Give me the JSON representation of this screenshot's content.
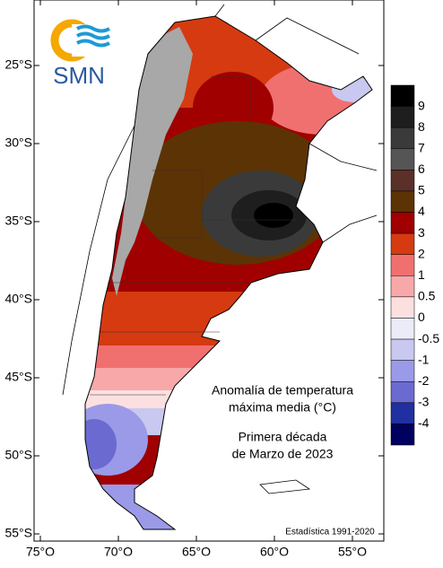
{
  "logo": {
    "text": "SMN"
  },
  "map": {
    "lat_labels": [
      "25°S",
      "30°S",
      "35°S",
      "40°S",
      "45°S",
      "50°S",
      "55°S"
    ],
    "lon_labels": [
      "75°O",
      "70°O",
      "65°O",
      "60°O",
      "55°O"
    ],
    "annotation": {
      "title_lines": [
        "Anomalía de temperatura",
        "máxima media (°C)"
      ],
      "period_lines": [
        "Primera década",
        "de Marzo de 2023"
      ]
    },
    "source": "Estadística 1991-2020"
  },
  "legend": {
    "labels": [
      "9",
      "8",
      "7",
      "6",
      "5",
      "4",
      "3",
      "2",
      "1",
      "0.5",
      "0",
      "-0.5",
      "-1",
      "-2",
      "-3",
      "-4"
    ],
    "colors": [
      "#000000",
      "#1e1e1e",
      "#3a3a3a",
      "#555555",
      "#5a3028",
      "#5c3305",
      "#a00000",
      "#d63a10",
      "#f07070",
      "#f8a8a8",
      "#fce0e0",
      "#ececf8",
      "#c8c8f0",
      "#9a9ae8",
      "#6a6ad0",
      "#2030a0",
      "#00005e"
    ]
  }
}
